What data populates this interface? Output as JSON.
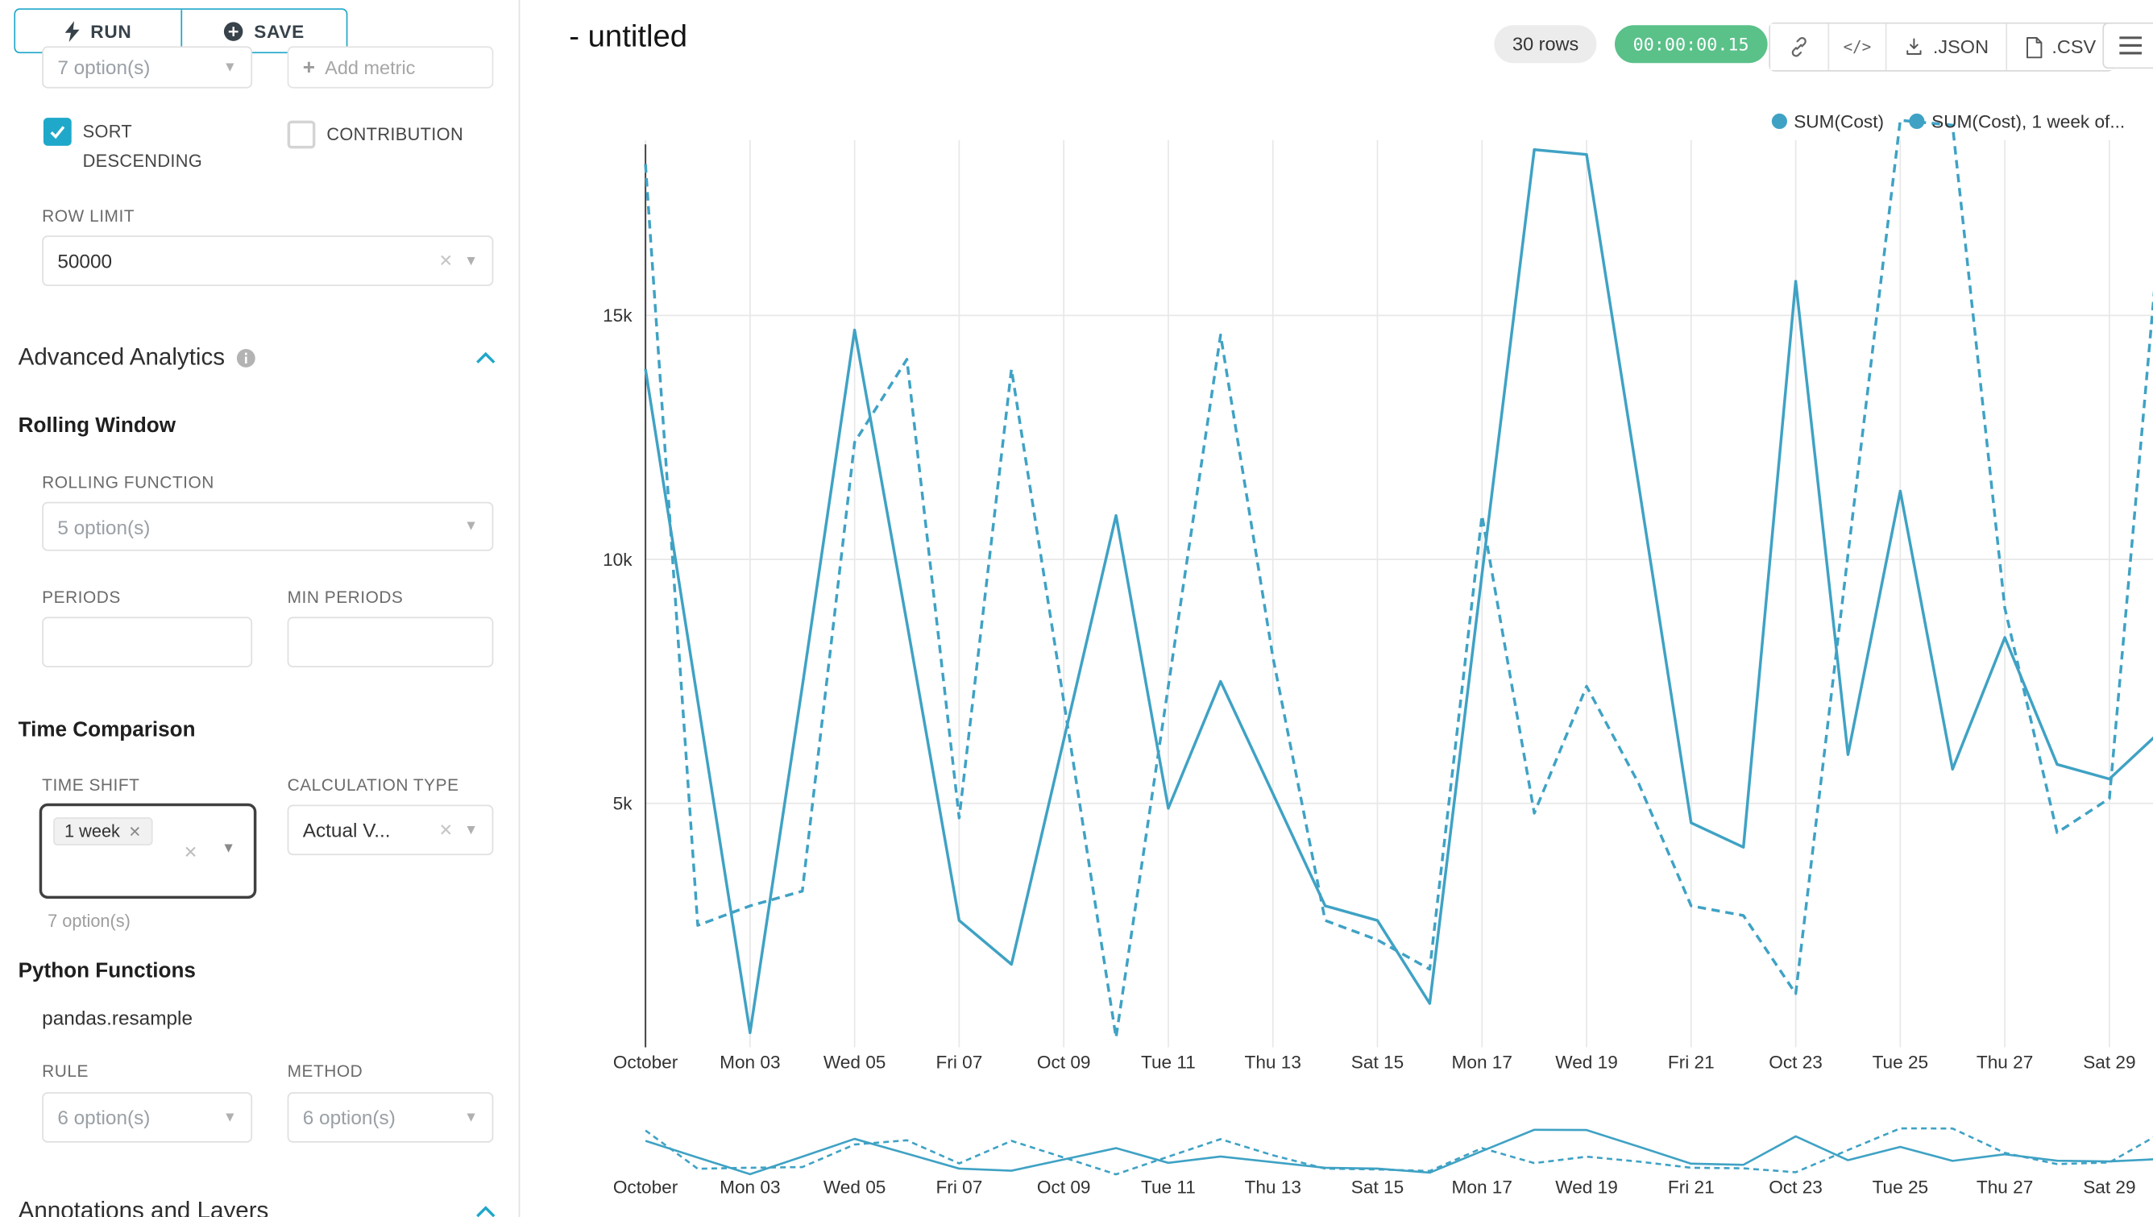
{
  "colors": {
    "accent": "#20A7C9",
    "success": "#5AC189",
    "line": "#3FA2C4"
  },
  "sidebar": {
    "run_label": "RUN",
    "save_label": "SAVE",
    "series_limit_value": "7 option(s)",
    "add_metric_label": "Add metric",
    "sort_descending_label": "SORT DESCENDING",
    "contribution_label": "CONTRIBUTION",
    "row_limit": {
      "label": "ROW LIMIT",
      "value": "50000"
    },
    "advanced_analytics_title": "Advanced Analytics",
    "rolling_window": {
      "title": "Rolling Window",
      "rolling_function_label": "ROLLING FUNCTION",
      "rolling_function_value": "5 option(s)",
      "periods_label": "PERIODS",
      "min_periods_label": "MIN PERIODS"
    },
    "time_comparison": {
      "title": "Time Comparison",
      "time_shift_label": "TIME SHIFT",
      "time_shift_tag": "1 week",
      "time_shift_hint": "7 option(s)",
      "calculation_type_label": "CALCULATION TYPE",
      "calculation_type_value": "Actual V..."
    },
    "python_functions": {
      "title": "Python Functions",
      "subtitle": "pandas.resample",
      "rule_label": "RULE",
      "rule_value": "6 option(s)",
      "method_label": "METHOD",
      "method_value": "6 option(s)"
    },
    "annotations_title": "Annotations and Layers"
  },
  "header": {
    "title": "- untitled",
    "rows_badge": "30 rows",
    "timer_badge": "00:00:00.15",
    "json_label": ".JSON",
    "csv_label": ".CSV"
  },
  "chart_data": {
    "type": "line",
    "title": "",
    "y_unit": "k",
    "ylim": [
      0,
      19
    ],
    "y_ticks": [
      5,
      10,
      15
    ],
    "y_tick_labels": [
      "5k",
      "10k",
      "15k"
    ],
    "x_tick_labels": [
      "October",
      "Mon 03",
      "Wed 05",
      "Fri 07",
      "Oct 09",
      "Tue 11",
      "Thu 13",
      "Sat 15",
      "Mon 17",
      "Wed 19",
      "Fri 21",
      "Oct 23",
      "Tue 25",
      "Thu 27",
      "Sat 29"
    ],
    "x": [
      "Oct 01",
      "Oct 02",
      "Oct 03",
      "Oct 04",
      "Oct 05",
      "Oct 06",
      "Oct 07",
      "Oct 08",
      "Oct 09",
      "Oct 10",
      "Oct 11",
      "Oct 12",
      "Oct 13",
      "Oct 14",
      "Oct 15",
      "Oct 16",
      "Oct 17",
      "Oct 18",
      "Oct 19",
      "Oct 20",
      "Oct 21",
      "Oct 22",
      "Oct 23",
      "Oct 24",
      "Oct 25",
      "Oct 26",
      "Oct 27",
      "Oct 28",
      "Oct 29",
      "Oct 30"
    ],
    "line_color": "#3FA2C4",
    "grid": true,
    "legend_position": "top-right",
    "series": [
      {
        "name": "SUM(Cost)",
        "style": "solid",
        "values": [
          13.9,
          7.1,
          0.3,
          7.4,
          14.7,
          8.7,
          2.6,
          1.7,
          6.3,
          10.9,
          4.9,
          7.5,
          5.2,
          2.9,
          2.6,
          0.9,
          9.7,
          18.4,
          18.3,
          11.5,
          4.6,
          4.1,
          15.7,
          6.0,
          11.4,
          5.7,
          8.4,
          5.8,
          5.5,
          6.5
        ]
      },
      {
        "name": "SUM(Cost), 1 week of...",
        "style": "dashed",
        "values": [
          18.1,
          2.5,
          2.9,
          3.2,
          12.4,
          14.1,
          4.7,
          13.9,
          7.1,
          0.2,
          7.4,
          14.6,
          8.0,
          2.6,
          2.2,
          1.6,
          10.9,
          4.8,
          7.4,
          5.4,
          2.9,
          2.7,
          1.1,
          10.1,
          19.0,
          18.9,
          9.0,
          4.4,
          5.1,
          17.2
        ]
      }
    ]
  }
}
